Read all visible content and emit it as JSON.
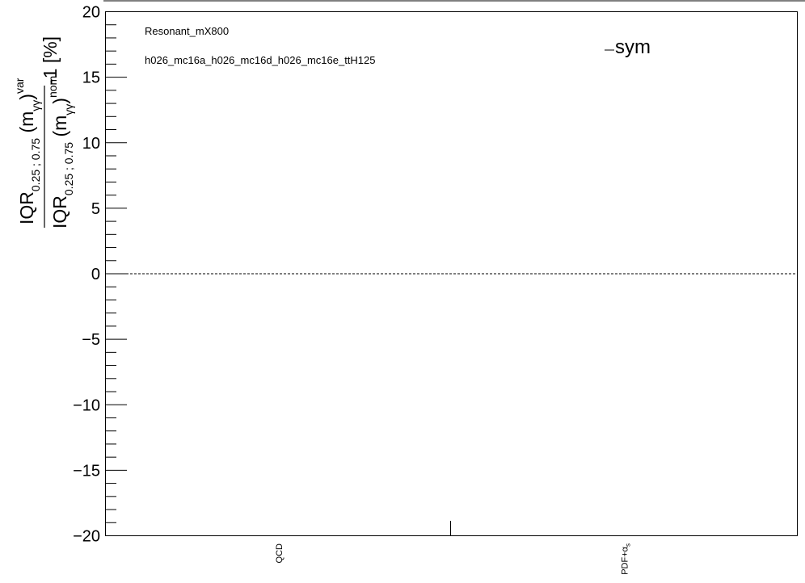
{
  "chart_data": {
    "type": "bar",
    "categories": [
      "QCD",
      "PDF+α_s"
    ],
    "series": [
      {
        "name": "sym",
        "values": [
          null,
          null
        ]
      }
    ],
    "ylim": [
      -20,
      20
    ],
    "yticks": [
      20,
      15,
      10,
      5,
      0,
      -5,
      -10,
      -15,
      -20
    ],
    "reference_line": 0,
    "annotations": [
      "Resonant_mX800",
      "h026_mc16a_h026_mc16d_h026_mc16e_ttH125"
    ],
    "legend": {
      "label": "sym",
      "placement": "top-right"
    },
    "ylabel": {
      "prefix": "IQR",
      "subscript": "0.25 ; 0.75",
      "var_sup": "var",
      "nom_sup": "nom",
      "mass_sub": "γγ",
      "suffix": "-1 [%]"
    },
    "grid": false
  }
}
